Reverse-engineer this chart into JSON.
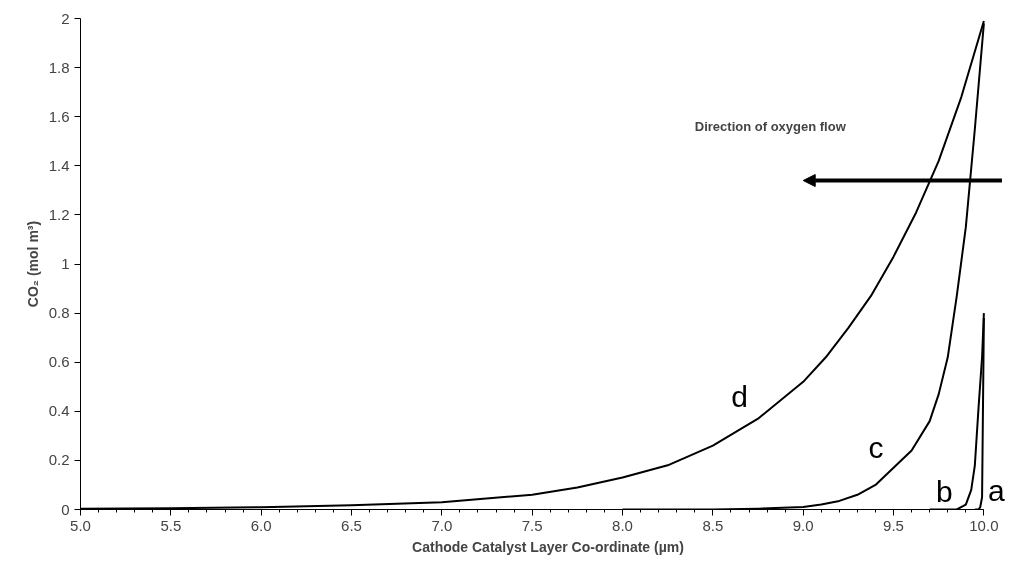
{
  "chart_data": {
    "type": "line",
    "xlabel": "Cathode Catalyst Layer Co-ordinate (µm)",
    "ylabel": "CO₂ (mol m³)",
    "annotations": [
      "Direction of oxygen flow"
    ],
    "series": [
      {
        "name": "a",
        "color": "#000000",
        "x": [
          9.95,
          9.97,
          9.98,
          9.99,
          10.0
        ],
        "values": [
          0,
          0,
          0.01,
          0.05,
          0.78
        ]
      },
      {
        "name": "b",
        "color": "#000000",
        "x": [
          9.7,
          9.85,
          9.9,
          9.93,
          9.95,
          9.97,
          9.99,
          10.0
        ],
        "values": [
          0,
          0,
          0.02,
          0.08,
          0.18,
          0.41,
          0.62,
          0.8
        ]
      },
      {
        "name": "c",
        "color": "#000000",
        "x": [
          8.0,
          8.5,
          8.75,
          9.0,
          9.1,
          9.2,
          9.3,
          9.4,
          9.5,
          9.6,
          9.7,
          9.75,
          9.8,
          9.85,
          9.9,
          9.95,
          10.0
        ],
        "values": [
          0,
          0,
          0.003,
          0.01,
          0.02,
          0.035,
          0.06,
          0.1,
          0.17,
          0.24,
          0.36,
          0.47,
          0.62,
          0.87,
          1.15,
          1.55,
          1.98
        ]
      },
      {
        "name": "d",
        "color": "#000000",
        "x": [
          5.0,
          5.5,
          6.0,
          6.5,
          7.0,
          7.5,
          7.75,
          8.0,
          8.25,
          8.5,
          8.75,
          9.0,
          9.125,
          9.25,
          9.375,
          9.5,
          9.625,
          9.75,
          9.875,
          10.0
        ],
        "values": [
          0.003,
          0.005,
          0.009,
          0.017,
          0.03,
          0.06,
          0.09,
          0.13,
          0.18,
          0.26,
          0.37,
          0.52,
          0.62,
          0.74,
          0.87,
          1.03,
          1.21,
          1.42,
          1.68,
          1.99
        ]
      }
    ],
    "xlim": [
      5.0,
      10.0
    ],
    "ylim": [
      0,
      2
    ],
    "xticks": [
      {
        "value": 5.0,
        "label": "5.0"
      },
      {
        "value": 5.5,
        "label": "5.5"
      },
      {
        "value": 6.0,
        "label": "6.0"
      },
      {
        "value": 6.5,
        "label": "6.5"
      },
      {
        "value": 7.0,
        "label": "7.0"
      },
      {
        "value": 7.5,
        "label": "7.5"
      },
      {
        "value": 8.0,
        "label": "8.0"
      },
      {
        "value": 8.5,
        "label": "8.5"
      },
      {
        "value": 9.0,
        "label": "9.0"
      },
      {
        "value": 9.5,
        "label": "9.5"
      },
      {
        "value": 10.0,
        "label": "10.0"
      }
    ],
    "yticks": [
      0,
      0.2,
      0.4,
      0.6,
      0.8,
      1,
      1.2,
      1.4,
      1.6,
      1.8,
      2
    ],
    "grid": false,
    "marker": "none",
    "line_style": "solid"
  }
}
